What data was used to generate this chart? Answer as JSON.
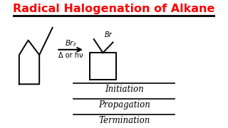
{
  "title": "Radical Halogenation of Alkane",
  "title_color": "#FF0000",
  "title_fontsize": 11.5,
  "bg_color": "#FFFFFF",
  "line_color": "#000000",
  "text_color": "#000000",
  "initiation_label": "Initiation",
  "propagation_label": "Propagation",
  "termination_label": "Termination",
  "br2_label": "Br₂",
  "condition_label": "Δ or hν",
  "br_label": "Br",
  "underline_color": "#000000",
  "arrow_color": "#000000",
  "figsize": [
    3.2,
    1.8
  ],
  "dpi": 100,
  "xlim": [
    0,
    10
  ],
  "ylim": [
    0,
    6
  ]
}
